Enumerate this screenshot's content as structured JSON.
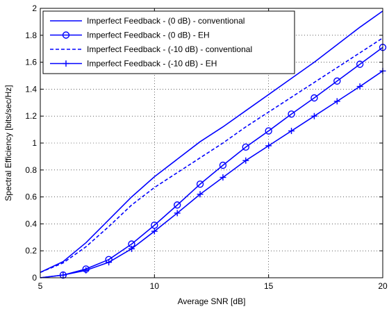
{
  "chart_data": {
    "type": "line",
    "title": "",
    "xlabel": "Average SNR [dB]",
    "ylabel": "Spectral Efficiency [bits/sec/Hz]",
    "xlim": [
      5,
      20
    ],
    "ylim": [
      0,
      2
    ],
    "xticks": [
      5,
      10,
      15,
      20
    ],
    "yticks": [
      0,
      0.2,
      0.4,
      0.6,
      0.8,
      1,
      1.2,
      1.4,
      1.6,
      1.8,
      2
    ],
    "xtick_labels": [
      "5",
      "10",
      "15",
      "20"
    ],
    "ytick_labels": [
      "0",
      "0.2",
      "0.4",
      "0.6",
      "0.8",
      "1",
      "1.2",
      "1.4",
      "1.6",
      "1.8",
      "2"
    ],
    "grid": "dotted",
    "legend_position": "top-left",
    "line_color": "#0000ff",
    "series": [
      {
        "name": "Imperfect Feedback - (0 dB) - conventional",
        "style": "solid",
        "marker": "none",
        "x": [
          5,
          6,
          7,
          8,
          9,
          10,
          11,
          12,
          13,
          14,
          15,
          16,
          17,
          18,
          19,
          20
        ],
        "y": [
          0.04,
          0.12,
          0.26,
          0.43,
          0.6,
          0.75,
          0.88,
          1.01,
          1.12,
          1.24,
          1.36,
          1.48,
          1.6,
          1.73,
          1.86,
          1.98
        ]
      },
      {
        "name": "Imperfect Feedback - (0 dB) - EH",
        "style": "solid",
        "marker": "circle",
        "x": [
          5,
          6,
          7,
          8,
          9,
          10,
          11,
          12,
          13,
          14,
          15,
          16,
          17,
          18,
          19,
          20
        ],
        "y": [
          0.0,
          0.02,
          0.065,
          0.135,
          0.25,
          0.39,
          0.54,
          0.695,
          0.835,
          0.97,
          1.09,
          1.215,
          1.335,
          1.46,
          1.585,
          1.71
        ]
      },
      {
        "name": "Imperfect Feedback - (-10 dB) - conventional",
        "style": "dashed",
        "marker": "none",
        "x": [
          5,
          6,
          7,
          8,
          9,
          10,
          11,
          12,
          13,
          14,
          15,
          16,
          17,
          18,
          19,
          20
        ],
        "y": [
          0.04,
          0.11,
          0.23,
          0.38,
          0.54,
          0.67,
          0.78,
          0.89,
          1.0,
          1.12,
          1.23,
          1.34,
          1.45,
          1.56,
          1.67,
          1.78
        ]
      },
      {
        "name": "Imperfect Feedback - (-10 dB) - EH",
        "style": "solid",
        "marker": "plus",
        "x": [
          5,
          6,
          7,
          8,
          9,
          10,
          11,
          12,
          13,
          14,
          15,
          16,
          17,
          18,
          19,
          20
        ],
        "y": [
          0.0,
          0.02,
          0.055,
          0.115,
          0.215,
          0.345,
          0.48,
          0.62,
          0.745,
          0.87,
          0.98,
          1.09,
          1.2,
          1.31,
          1.42,
          1.535
        ]
      }
    ]
  }
}
